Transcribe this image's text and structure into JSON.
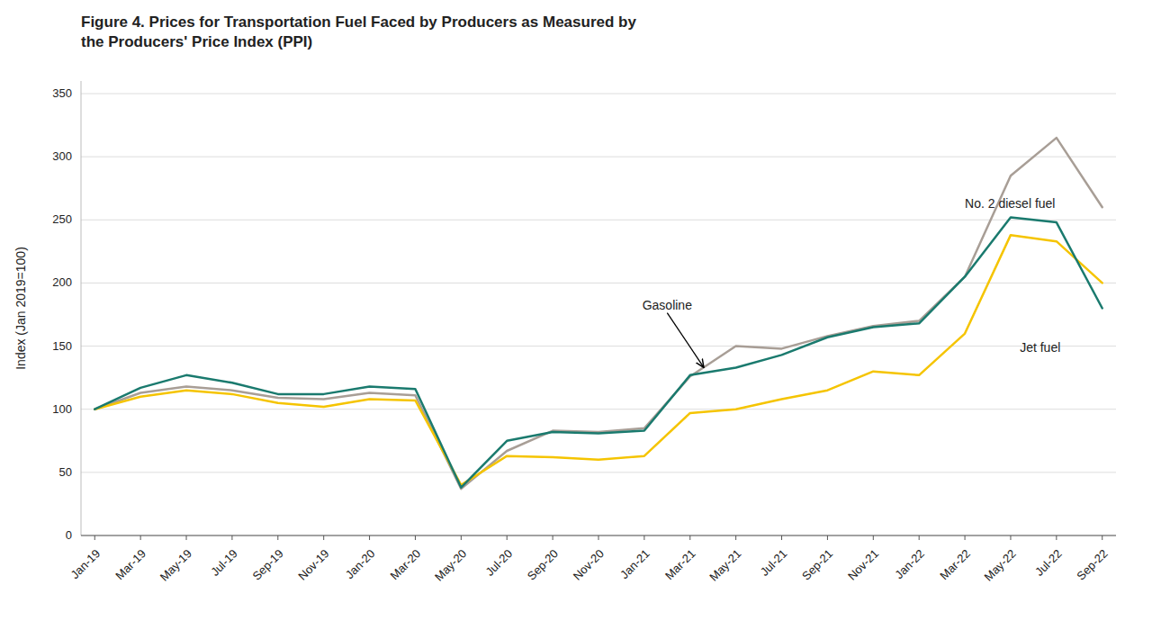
{
  "chart_data": {
    "type": "line",
    "title": "Figure 4. Prices for Transportation Fuel Faced by Producers as Measured by\nthe Producers' Price Index (PPI)",
    "y_label": "Index (Jan 2019=100)",
    "ylim": [
      0,
      360
    ],
    "yticks": [
      0,
      50,
      100,
      150,
      200,
      250,
      300,
      350
    ],
    "grid": true,
    "categories": [
      "Jan-19",
      "Mar-19",
      "May-19",
      "Jul-19",
      "Sep-19",
      "Nov-19",
      "Jan-20",
      "Mar-20",
      "May-20",
      "Jul-20",
      "Sep-20",
      "Nov-20",
      "Jan-21",
      "Mar-21",
      "May-21",
      "Jul-21",
      "Sep-21",
      "Nov-21",
      "Jan-22",
      "Mar-22",
      "May-22",
      "Jul-22",
      "Sep-22"
    ],
    "series": [
      {
        "color": "#a89e96",
        "values": [
          100,
          113,
          118,
          115,
          109,
          108,
          113,
          111,
          37,
          67,
          83,
          82,
          85,
          126,
          150,
          148,
          158,
          166,
          170,
          205,
          285,
          315,
          260
        ]
      },
      {
        "color": "#1a7a6e",
        "values": [
          100,
          117,
          127,
          121,
          112,
          112,
          118,
          116,
          38,
          75,
          82,
          81,
          83,
          127,
          133,
          143,
          157,
          165,
          168,
          205,
          252,
          248,
          180
        ]
      },
      {
        "color": "#f5c400",
        "values": [
          100,
          110,
          115,
          112,
          105,
          102,
          108,
          107,
          40,
          63,
          62,
          60,
          63,
          97,
          100,
          108,
          115,
          130,
          127,
          160,
          238,
          233,
          200
        ]
      }
    ],
    "annotations": [
      {
        "text": "Gasoline",
        "x": 12.5,
        "y": 175,
        "arrow_x": 13.3,
        "arrow_y": 133
      },
      {
        "text": "No. 2 diesel fuel",
        "x": 19.0,
        "y": 262
      },
      {
        "text": "Jet fuel",
        "x": 20.2,
        "y": 148
      }
    ]
  }
}
